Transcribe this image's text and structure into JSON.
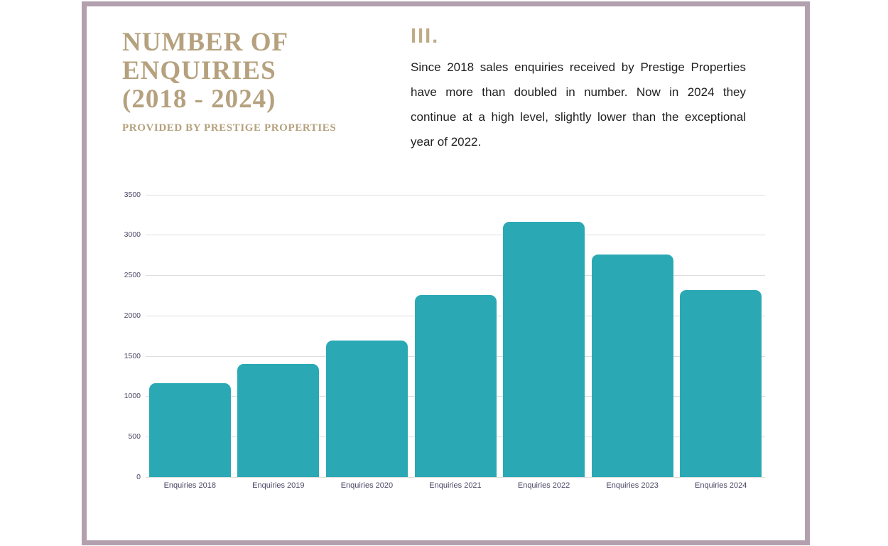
{
  "frame": {
    "border_color": "#b3a0ae"
  },
  "title_block": {
    "title_lines": [
      "NUMBER OF",
      "ENQUIRIES",
      "(2018 - 2024)"
    ],
    "subtitle": "PROVIDED BY PRESTIGE PROPERTIES",
    "accent_color": "#b5a17e"
  },
  "section": {
    "heading": "III.",
    "body": "Since 2018 sales enquiries received by Prestige Properties have more than doubled in number. Now in 2024 they continue at a high level, slightly lower than the exceptional year of 2022."
  },
  "chart_data": {
    "type": "bar",
    "title": "",
    "xlabel": "",
    "ylabel": "",
    "categories": [
      "Enquiries 2018",
      "Enquiries 2019",
      "Enquiries 2020",
      "Enquiries 2021",
      "Enquiries 2022",
      "Enquiries 2023",
      "Enquiries 2024"
    ],
    "values": [
      1160,
      1400,
      1690,
      2250,
      3160,
      2760,
      2320
    ],
    "ylim": [
      0,
      3500
    ],
    "yticks": [
      0,
      500,
      1000,
      1500,
      2000,
      2500,
      3000,
      3500
    ],
    "grid": true,
    "legend": false,
    "bar_color": "#2aa9b4",
    "gridline_color": "#dedede",
    "axis_label_color": "#4b4563"
  }
}
